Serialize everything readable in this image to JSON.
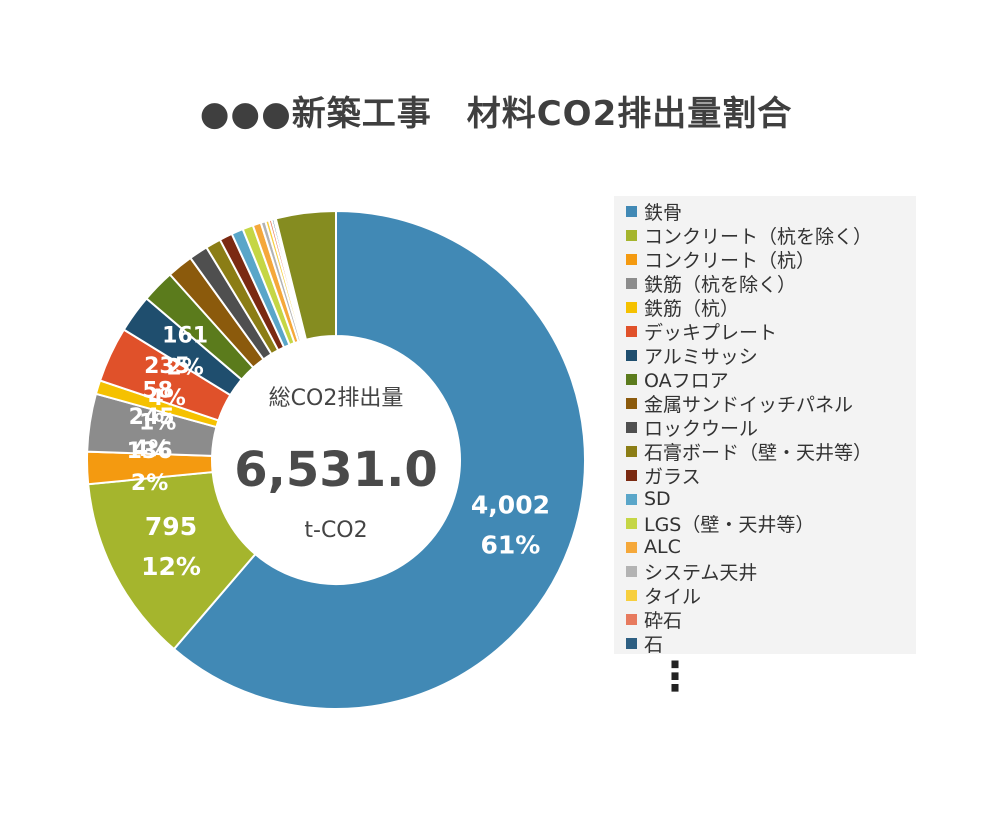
{
  "chart_data": {
    "type": "pie",
    "title": "●●●新築工事　材料CO2排出量割合",
    "center_label": "総CO2排出量",
    "center_value": "6,531.0",
    "center_unit": "t-CO2",
    "legend_placement": "right",
    "slices": [
      {
        "name": "鉄骨",
        "value": 4002,
        "color": "#4189b5",
        "value_label": "4,002",
        "pct_label": "61%"
      },
      {
        "name": "コンクリート（杭を除く）",
        "value": 795,
        "color": "#a5b52d",
        "value_label": "795",
        "pct_label": "12%"
      },
      {
        "name": "コンクリート（杭）",
        "value": 136,
        "color": "#f49a10",
        "value_label": "136",
        "pct_label": "2%"
      },
      {
        "name": "鉄筋（杭を除く）",
        "value": 245,
        "color": "#8c8c8c",
        "value_label": "245",
        "pct_label": "4%"
      },
      {
        "name": "鉄筋（杭）",
        "value": 58,
        "color": "#f5c100",
        "value_label": "58",
        "pct_label": "1%"
      },
      {
        "name": "デッキプレート",
        "value": 235,
        "color": "#e0512a",
        "value_label": "235",
        "pct_label": "4%"
      },
      {
        "name": "アルミサッシ",
        "value": 161,
        "color": "#1f4e6e",
        "value_label": "161",
        "pct_label": "2%"
      },
      {
        "name": "OAフロア",
        "value": 140,
        "color": "#5b7b1c",
        "value_label": "",
        "pct_label": ""
      },
      {
        "name": "金属サンドイッチパネル",
        "value": 110,
        "color": "#8b5a0c",
        "value_label": "",
        "pct_label": ""
      },
      {
        "name": "ロックウール",
        "value": 80,
        "color": "#4f4f4f",
        "value_label": "",
        "pct_label": ""
      },
      {
        "name": "石膏ボード（壁・天井等）",
        "value": 65,
        "color": "#8b7d15",
        "value_label": "",
        "pct_label": ""
      },
      {
        "name": "ガラス",
        "value": 55,
        "color": "#7b2a12",
        "value_label": "",
        "pct_label": ""
      },
      {
        "name": "SD",
        "value": 50,
        "color": "#5aa6c9",
        "value_label": "",
        "pct_label": ""
      },
      {
        "name": "LGS（壁・天井等）",
        "value": 45,
        "color": "#c5d645",
        "value_label": "",
        "pct_label": ""
      },
      {
        "name": "ALC",
        "value": 35,
        "color": "#f5a83a",
        "value_label": "",
        "pct_label": ""
      },
      {
        "name": "システム天井",
        "value": 20,
        "color": "#b3b3b3",
        "value_label": "",
        "pct_label": ""
      },
      {
        "name": "タイル",
        "value": 15,
        "color": "#f7cf3e",
        "value_label": "",
        "pct_label": ""
      },
      {
        "name": "砕石",
        "value": 12,
        "color": "#e77a5e",
        "value_label": "",
        "pct_label": ""
      },
      {
        "name": "石",
        "value": 10,
        "color": "#2e5f82",
        "value_label": "",
        "pct_label": ""
      },
      {
        "name": "",
        "value": 8,
        "color": "#8e9a3d",
        "value_label": "",
        "pct_label": ""
      },
      {
        "name": "",
        "value": 254,
        "color": "#858c20",
        "value_label": "",
        "pct_label": ""
      }
    ],
    "legend_more": "⋮"
  }
}
